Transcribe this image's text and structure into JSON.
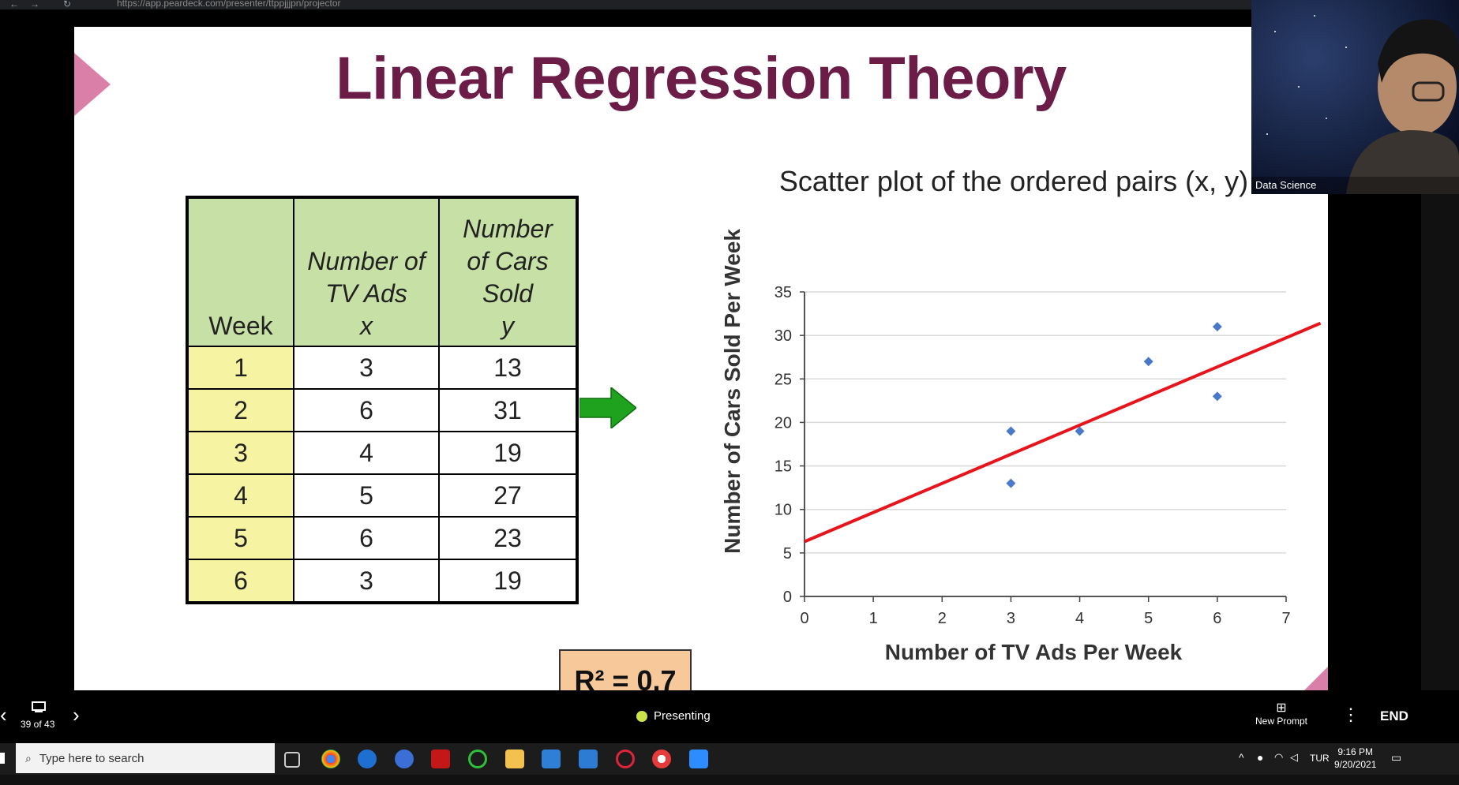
{
  "browser": {
    "url": "https://app.peardeck.com/presenter/ttppjjjpn/projector"
  },
  "slide": {
    "title": "Linear Regression Theory",
    "chart_title": "Scatter plot of the ordered pairs (x, y)",
    "table": {
      "headers": [
        "Week",
        "Number of TV Ads",
        "x",
        "Number of Cars Sold",
        "y"
      ],
      "rows": [
        [
          "1",
          "3",
          "13"
        ],
        [
          "2",
          "6",
          "31"
        ],
        [
          "3",
          "4",
          "19"
        ],
        [
          "4",
          "5",
          "27"
        ],
        [
          "5",
          "6",
          "23"
        ],
        [
          "6",
          "3",
          "19"
        ]
      ]
    },
    "r_squared": "R² = 0.7"
  },
  "chart_data": {
    "type": "scatter",
    "title": "Scatter plot of the ordered pairs (x, y)",
    "xlabel": "Number of TV Ads Per Week",
    "ylabel": "Number of Cars Sold Per Week",
    "xlim": [
      0,
      7
    ],
    "ylim": [
      0,
      35
    ],
    "x_ticks": [
      0,
      1,
      2,
      3,
      4,
      5,
      6,
      7
    ],
    "y_ticks": [
      0,
      5,
      10,
      15,
      20,
      25,
      30,
      35
    ],
    "grid": true,
    "points": [
      {
        "x": 3,
        "y": 13
      },
      {
        "x": 6,
        "y": 31
      },
      {
        "x": 4,
        "y": 19
      },
      {
        "x": 5,
        "y": 27
      },
      {
        "x": 6,
        "y": 23
      },
      {
        "x": 3,
        "y": 19
      }
    ],
    "regression_line": {
      "x": [
        0,
        7.5
      ],
      "y": [
        6.3,
        31.4
      ]
    },
    "colors": {
      "points": "#4a79c9",
      "line": "#e8141b"
    }
  },
  "webcam": {
    "label": "Data Science"
  },
  "presenter_bar": {
    "slide_counter": "39 of 43",
    "status": "Presenting",
    "new_prompt": "New Prompt",
    "end": "END"
  },
  "taskbar": {
    "search_placeholder": "Type here to search",
    "language": "TUR",
    "time": "9:16 PM",
    "date": "9/20/2021"
  }
}
